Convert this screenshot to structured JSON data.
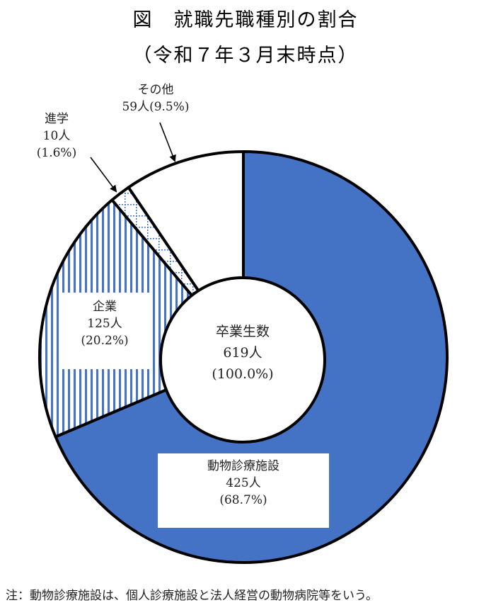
{
  "title": {
    "line1": "図　就職先職種別の割合",
    "line2": "（令和７年３月末時点）"
  },
  "center_label": {
    "name": "卒業生数",
    "count": "619人",
    "percent": "(100.0%)"
  },
  "slices": [
    {
      "name": "動物診療施設",
      "count": "425人",
      "percent": "(68.7%)",
      "value": 425,
      "pct": 68.7,
      "fill": "#4472C4",
      "pattern": "solid"
    },
    {
      "name": "企業",
      "count": "125人",
      "percent": "(20.2%)",
      "value": 125,
      "pct": 20.2,
      "fill": "#4472C4",
      "pattern": "vertical-stripes"
    },
    {
      "name": "進学",
      "count": "10人",
      "percent": "(1.6%)",
      "value": 10,
      "pct": 1.6,
      "fill": "#4472C4",
      "pattern": "dotted-grid"
    },
    {
      "name": "その他",
      "count": "59人",
      "percent": "(9.5%)",
      "value": 59,
      "pct": 9.5,
      "fill": "#FFFFFF",
      "pattern": "none"
    }
  ],
  "other_label": {
    "line1": "その他",
    "line2": "59人(9.5%)"
  },
  "study_label": {
    "line1": "進学",
    "line2": "10人",
    "line3": "(1.6%)"
  },
  "note": "注：動物診療施設は、個人診療施設と法人経営の動物病院等をいう。",
  "chart_data": {
    "type": "pie",
    "subtype": "donut",
    "title": "図　就職先職種別の割合（令和７年３月末時点）",
    "categories": [
      "動物診療施設",
      "企業",
      "進学",
      "その他"
    ],
    "values": [
      425,
      125,
      10,
      59
    ],
    "percentages": [
      68.7,
      20.2,
      1.6,
      9.5
    ],
    "total": 619,
    "total_label": "卒業生数 619人 (100.0%)",
    "start_angle": "12 o'clock, clockwise",
    "annotations": [
      "注：動物診療施設は、個人診療施設と法人経営の動物病院等をいう。"
    ]
  }
}
